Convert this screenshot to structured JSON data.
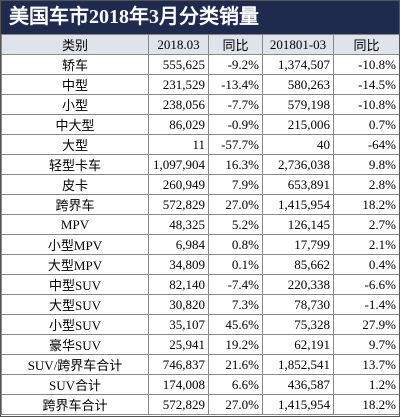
{
  "header": {
    "title": "美国车市2018年3月分类销量"
  },
  "table": {
    "columns": [
      "类别",
      "2018.03",
      "同比",
      "201801-03",
      "同比"
    ],
    "rows": [
      [
        "轿车",
        "555,625",
        "-9.2%",
        "1,374,507",
        "-10.8%"
      ],
      [
        "中型",
        "231,529",
        "-13.4%",
        "580,263",
        "-14.5%"
      ],
      [
        "小型",
        "238,056",
        "-7.7%",
        "579,198",
        "-10.8%"
      ],
      [
        "中大型",
        "86,029",
        "-0.9%",
        "215,006",
        "0.7%"
      ],
      [
        "大型",
        "11",
        "-57.7%",
        "40",
        "-64%"
      ],
      [
        "轻型卡车",
        "1,097,904",
        "16.3%",
        "2,736,038",
        "9.8%"
      ],
      [
        "皮卡",
        "260,949",
        "7.9%",
        "653,891",
        "2.8%"
      ],
      [
        "跨界车",
        "572,829",
        "27.0%",
        "1,415,954",
        "18.2%"
      ],
      [
        "MPV",
        "48,325",
        "5.2%",
        "126,145",
        "2.7%"
      ],
      [
        "小型MPV",
        "6,984",
        "0.8%",
        "17,799",
        "2.1%"
      ],
      [
        "大型MPV",
        "34,809",
        "0.1%",
        "85,662",
        "0.4%"
      ],
      [
        "中型SUV",
        "82,140",
        "-7.4%",
        "220,338",
        "-6.6%"
      ],
      [
        "大型SUV",
        "30,820",
        "7.3%",
        "78,730",
        "-1.4%"
      ],
      [
        "小型SUV",
        "35,107",
        "45.6%",
        "75,328",
        "27.9%"
      ],
      [
        "豪华SUV",
        "25,941",
        "19.2%",
        "62,191",
        "9.7%"
      ],
      [
        "SUV/跨界车合计",
        "746,837",
        "21.6%",
        "1,852,541",
        "13.7%"
      ],
      [
        "SUV合计",
        "174,008",
        "6.6%",
        "436,587",
        "1.2%"
      ],
      [
        "跨界车合计",
        "572,829",
        "27.0%",
        "1,415,954",
        "18.2%"
      ]
    ]
  }
}
